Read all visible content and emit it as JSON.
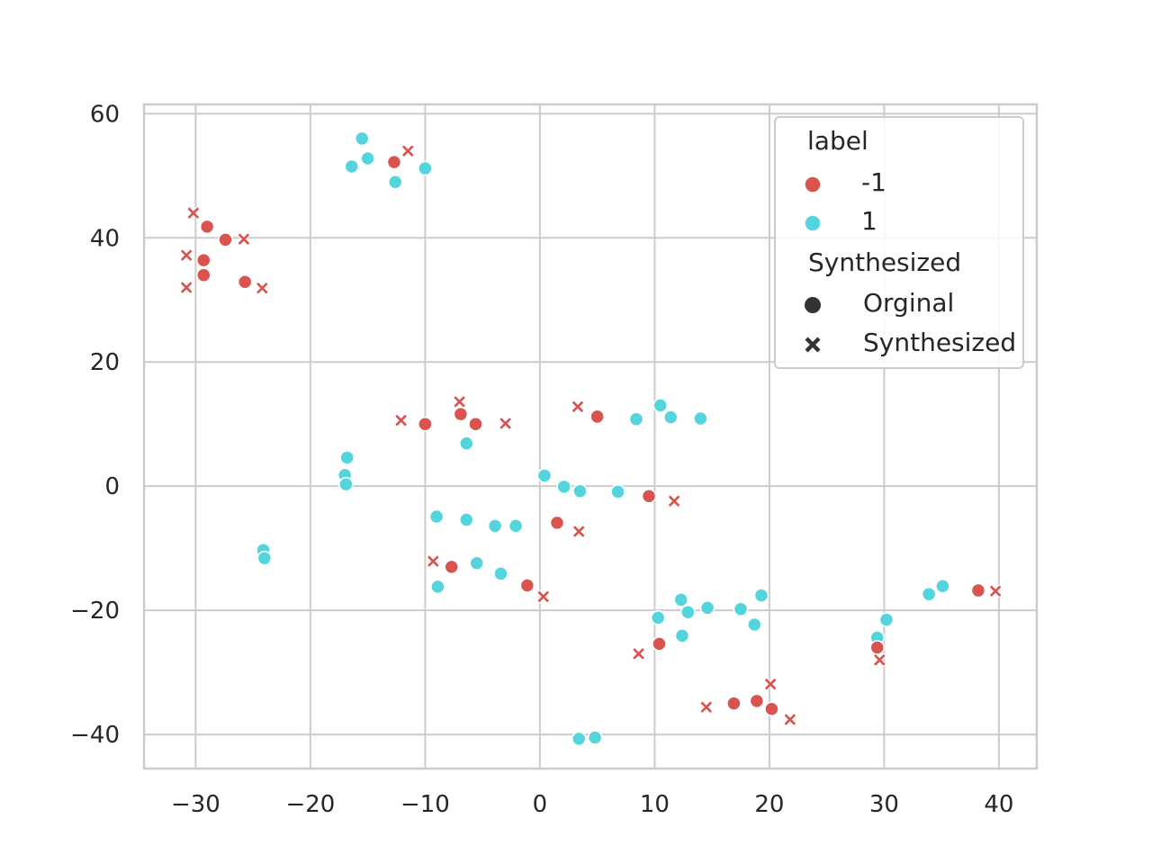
{
  "chart_data": {
    "type": "scatter",
    "title": "",
    "xlabel": "",
    "ylabel": "",
    "xlim": [
      -34.5,
      43.3
    ],
    "ylim": [
      -45.5,
      61.5
    ],
    "x_ticks": [
      -30,
      -20,
      -10,
      0,
      10,
      20,
      30,
      40
    ],
    "x_tick_labels": [
      "−30",
      "−20",
      "−10",
      "0",
      "10",
      "20",
      "30",
      "40"
    ],
    "y_ticks": [
      -40,
      -20,
      0,
      20,
      40,
      60
    ],
    "y_tick_labels": [
      "−40",
      "−20",
      "0",
      "20",
      "40",
      "60"
    ],
    "grid": true,
    "legend": {
      "placement": "top-right",
      "hue_title": "label",
      "hue_entries": [
        {
          "label": "-1",
          "color": "#d9534f"
        },
        {
          "label": "1",
          "color": "#54d4dc"
        }
      ],
      "style_title": "Synthesized",
      "style_entries": [
        {
          "label": "Orginal",
          "marker": "circle"
        },
        {
          "label": "Synthesized",
          "marker": "x"
        }
      ]
    },
    "colors": {
      "-1": "#d9534f",
      "1": "#54d4dc",
      "legend_marker": "#333333"
    },
    "points": [
      {
        "x": -15.5,
        "y": 56.0,
        "label": "1",
        "synth": "Orginal"
      },
      {
        "x": -16.4,
        "y": 51.5,
        "label": "1",
        "synth": "Orginal"
      },
      {
        "x": -15.0,
        "y": 52.8,
        "label": "1",
        "synth": "Orginal"
      },
      {
        "x": -12.6,
        "y": 49.0,
        "label": "1",
        "synth": "Orginal"
      },
      {
        "x": -10.0,
        "y": 51.2,
        "label": "1",
        "synth": "Orginal"
      },
      {
        "x": -12.7,
        "y": 52.2,
        "label": "-1",
        "synth": "Orginal"
      },
      {
        "x": -11.5,
        "y": 54.0,
        "label": "-1",
        "synth": "Synthesized"
      },
      {
        "x": -30.2,
        "y": 44.0,
        "label": "-1",
        "synth": "Synthesized"
      },
      {
        "x": -29.0,
        "y": 41.8,
        "label": "-1",
        "synth": "Orginal"
      },
      {
        "x": -27.4,
        "y": 39.7,
        "label": "-1",
        "synth": "Orginal"
      },
      {
        "x": -25.8,
        "y": 39.8,
        "label": "-1",
        "synth": "Synthesized"
      },
      {
        "x": -30.8,
        "y": 37.2,
        "label": "-1",
        "synth": "Synthesized"
      },
      {
        "x": -29.3,
        "y": 36.4,
        "label": "-1",
        "synth": "Orginal"
      },
      {
        "x": -29.3,
        "y": 34.0,
        "label": "-1",
        "synth": "Orginal"
      },
      {
        "x": -25.7,
        "y": 32.9,
        "label": "-1",
        "synth": "Orginal"
      },
      {
        "x": -30.8,
        "y": 32.0,
        "label": "-1",
        "synth": "Synthesized"
      },
      {
        "x": -24.2,
        "y": 31.9,
        "label": "-1",
        "synth": "Synthesized"
      },
      {
        "x": -12.1,
        "y": 10.6,
        "label": "-1",
        "synth": "Synthesized"
      },
      {
        "x": -10.0,
        "y": 10.0,
        "label": "-1",
        "synth": "Orginal"
      },
      {
        "x": -7.0,
        "y": 13.6,
        "label": "-1",
        "synth": "Synthesized"
      },
      {
        "x": -6.9,
        "y": 11.6,
        "label": "-1",
        "synth": "Orginal"
      },
      {
        "x": -5.6,
        "y": 10.0,
        "label": "-1",
        "synth": "Orginal"
      },
      {
        "x": -3.0,
        "y": 10.1,
        "label": "-1",
        "synth": "Synthesized"
      },
      {
        "x": 3.3,
        "y": 12.8,
        "label": "-1",
        "synth": "Synthesized"
      },
      {
        "x": 5.0,
        "y": 11.2,
        "label": "-1",
        "synth": "Orginal"
      },
      {
        "x": 8.4,
        "y": 10.8,
        "label": "1",
        "synth": "Orginal"
      },
      {
        "x": 10.5,
        "y": 13.0,
        "label": "1",
        "synth": "Orginal"
      },
      {
        "x": 11.4,
        "y": 11.1,
        "label": "1",
        "synth": "Orginal"
      },
      {
        "x": 14.0,
        "y": 10.9,
        "label": "1",
        "synth": "Orginal"
      },
      {
        "x": -6.4,
        "y": 6.9,
        "label": "1",
        "synth": "Orginal"
      },
      {
        "x": -16.8,
        "y": 4.6,
        "label": "1",
        "synth": "Orginal"
      },
      {
        "x": -17.0,
        "y": 1.8,
        "label": "1",
        "synth": "Orginal"
      },
      {
        "x": -16.9,
        "y": 0.3,
        "label": "1",
        "synth": "Orginal"
      },
      {
        "x": 0.4,
        "y": 1.7,
        "label": "1",
        "synth": "Orginal"
      },
      {
        "x": 2.1,
        "y": -0.1,
        "label": "1",
        "synth": "Orginal"
      },
      {
        "x": 3.5,
        "y": -0.8,
        "label": "1",
        "synth": "Orginal"
      },
      {
        "x": 6.8,
        "y": -0.9,
        "label": "1",
        "synth": "Orginal"
      },
      {
        "x": 9.5,
        "y": -1.6,
        "label": "-1",
        "synth": "Orginal"
      },
      {
        "x": 11.7,
        "y": -2.4,
        "label": "-1",
        "synth": "Synthesized"
      },
      {
        "x": -9.0,
        "y": -4.9,
        "label": "1",
        "synth": "Orginal"
      },
      {
        "x": -6.4,
        "y": -5.4,
        "label": "1",
        "synth": "Orginal"
      },
      {
        "x": -3.9,
        "y": -6.4,
        "label": "1",
        "synth": "Orginal"
      },
      {
        "x": -2.1,
        "y": -6.4,
        "label": "1",
        "synth": "Orginal"
      },
      {
        "x": 1.5,
        "y": -5.9,
        "label": "-1",
        "synth": "Orginal"
      },
      {
        "x": 3.4,
        "y": -7.3,
        "label": "-1",
        "synth": "Synthesized"
      },
      {
        "x": -24.1,
        "y": -10.3,
        "label": "1",
        "synth": "Orginal"
      },
      {
        "x": -24.0,
        "y": -11.6,
        "label": "1",
        "synth": "Orginal"
      },
      {
        "x": -9.3,
        "y": -12.1,
        "label": "-1",
        "synth": "Synthesized"
      },
      {
        "x": -7.7,
        "y": -13.0,
        "label": "-1",
        "synth": "Orginal"
      },
      {
        "x": -5.5,
        "y": -12.4,
        "label": "1",
        "synth": "Orginal"
      },
      {
        "x": -3.4,
        "y": -14.1,
        "label": "1",
        "synth": "Orginal"
      },
      {
        "x": -8.9,
        "y": -16.2,
        "label": "1",
        "synth": "Orginal"
      },
      {
        "x": -1.1,
        "y": -16.0,
        "label": "-1",
        "synth": "Orginal"
      },
      {
        "x": 0.3,
        "y": -17.8,
        "label": "-1",
        "synth": "Synthesized"
      },
      {
        "x": 12.3,
        "y": -18.3,
        "label": "1",
        "synth": "Orginal"
      },
      {
        "x": 12.9,
        "y": -20.3,
        "label": "1",
        "synth": "Orginal"
      },
      {
        "x": 14.6,
        "y": -19.6,
        "label": "1",
        "synth": "Orginal"
      },
      {
        "x": 17.5,
        "y": -19.8,
        "label": "1",
        "synth": "Orginal"
      },
      {
        "x": 19.3,
        "y": -17.6,
        "label": "1",
        "synth": "Orginal"
      },
      {
        "x": 18.7,
        "y": -22.3,
        "label": "1",
        "synth": "Orginal"
      },
      {
        "x": 10.3,
        "y": -21.2,
        "label": "1",
        "synth": "Orginal"
      },
      {
        "x": 12.4,
        "y": -24.1,
        "label": "1",
        "synth": "Orginal"
      },
      {
        "x": 10.4,
        "y": -25.4,
        "label": "-1",
        "synth": "Orginal"
      },
      {
        "x": 8.6,
        "y": -27.0,
        "label": "-1",
        "synth": "Synthesized"
      },
      {
        "x": 30.2,
        "y": -21.5,
        "label": "1",
        "synth": "Orginal"
      },
      {
        "x": 29.4,
        "y": -24.4,
        "label": "1",
        "synth": "Orginal"
      },
      {
        "x": 29.4,
        "y": -26.0,
        "label": "-1",
        "synth": "Orginal"
      },
      {
        "x": 29.6,
        "y": -28.0,
        "label": "-1",
        "synth": "Synthesized"
      },
      {
        "x": 33.9,
        "y": -17.4,
        "label": "1",
        "synth": "Orginal"
      },
      {
        "x": 35.1,
        "y": -16.1,
        "label": "1",
        "synth": "Orginal"
      },
      {
        "x": 38.2,
        "y": -16.8,
        "label": "-1",
        "synth": "Orginal"
      },
      {
        "x": 39.7,
        "y": -16.9,
        "label": "-1",
        "synth": "Synthesized"
      },
      {
        "x": 14.5,
        "y": -35.6,
        "label": "-1",
        "synth": "Synthesized"
      },
      {
        "x": 16.9,
        "y": -35.0,
        "label": "-1",
        "synth": "Orginal"
      },
      {
        "x": 18.9,
        "y": -34.6,
        "label": "-1",
        "synth": "Orginal"
      },
      {
        "x": 20.2,
        "y": -35.9,
        "label": "-1",
        "synth": "Orginal"
      },
      {
        "x": 20.1,
        "y": -31.9,
        "label": "-1",
        "synth": "Synthesized"
      },
      {
        "x": 21.8,
        "y": -37.6,
        "label": "-1",
        "synth": "Synthesized"
      },
      {
        "x": 3.4,
        "y": -40.7,
        "label": "1",
        "synth": "Orginal"
      },
      {
        "x": 4.8,
        "y": -40.5,
        "label": "1",
        "synth": "Orginal"
      }
    ]
  }
}
